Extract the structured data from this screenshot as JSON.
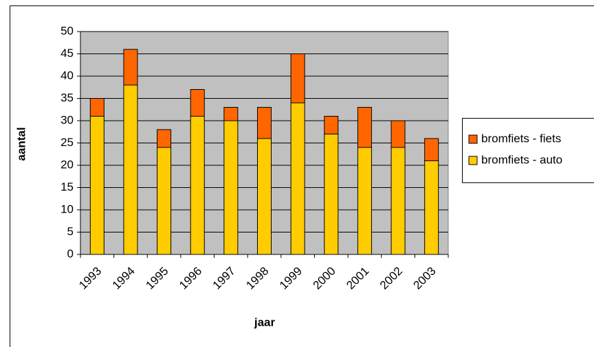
{
  "chart_data": {
    "type": "stacked_bar",
    "x_label": "jaar",
    "y_label": "aantal",
    "categories": [
      "1993",
      "1994",
      "1995",
      "1996",
      "1997",
      "1998",
      "1999",
      "2000",
      "2001",
      "2002",
      "2003"
    ],
    "series": [
      {
        "name": "bromfiets - auto",
        "color": "#FFCC00",
        "values": [
          31,
          38,
          24,
          31,
          30,
          26,
          34,
          27,
          24,
          24,
          21
        ]
      },
      {
        "name": "bromfiets - fiets",
        "color": "#FF6600",
        "values": [
          4,
          8,
          4,
          6,
          3,
          7,
          11,
          4,
          9,
          6,
          5
        ]
      }
    ],
    "ylim": [
      0,
      50
    ],
    "yticks": [
      0,
      5,
      10,
      15,
      20,
      25,
      30,
      35,
      40,
      45,
      50
    ],
    "grid": true,
    "legend": "right"
  }
}
